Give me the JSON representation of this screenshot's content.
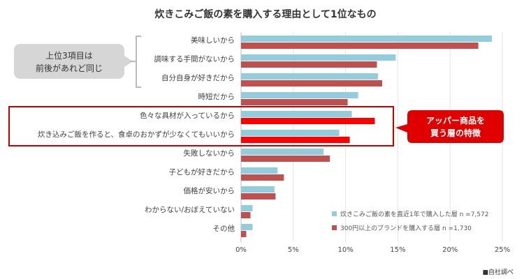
{
  "chart_data": {
    "type": "bar",
    "orientation": "horizontal",
    "title": "炊きこみご飯の素を購入する理由として1位なもの",
    "categories": [
      "美味しいから",
      "調味する手間がないから",
      "自分自身が好きだから",
      "時短だから",
      "色々な具材が入っているから",
      "炊き込みご飯を作ると、食卓のおかずが少なくてもいいから",
      "失敗しないから",
      "子どもが好きだから",
      "価格が安いから",
      "わからない/おぼえていない",
      "その他"
    ],
    "series": [
      {
        "name": "炊きこみご飯の素を直近1年で購入した層 n =7,572",
        "color": "#93cddd",
        "values": [
          24.0,
          14.8,
          13.1,
          11.2,
          10.6,
          9.4,
          7.9,
          3.5,
          3.2,
          1.1,
          1.1
        ]
      },
      {
        "name": "300円以上のブランドを購入する層 n =1,730",
        "color": "#c0504d",
        "highlight_color": "#ff0000",
        "values": [
          22.7,
          13.0,
          13.5,
          10.2,
          12.8,
          10.4,
          8.5,
          4.1,
          3.3,
          0.9,
          0.5
        ]
      }
    ],
    "highlighted_categories": [
      4,
      5
    ],
    "xlim": [
      0,
      25
    ],
    "xticks": [
      "0%",
      "5%",
      "10%",
      "15%",
      "20%",
      "25%"
    ],
    "grid": true,
    "legend_placement": "bottom-right",
    "annotations": {
      "left_callout": [
        "上位3項目は",
        "前後があれど同じ"
      ],
      "right_callout": [
        "アッパー商品を",
        "買う層の特徴"
      ]
    },
    "source": "■自社調べ"
  }
}
